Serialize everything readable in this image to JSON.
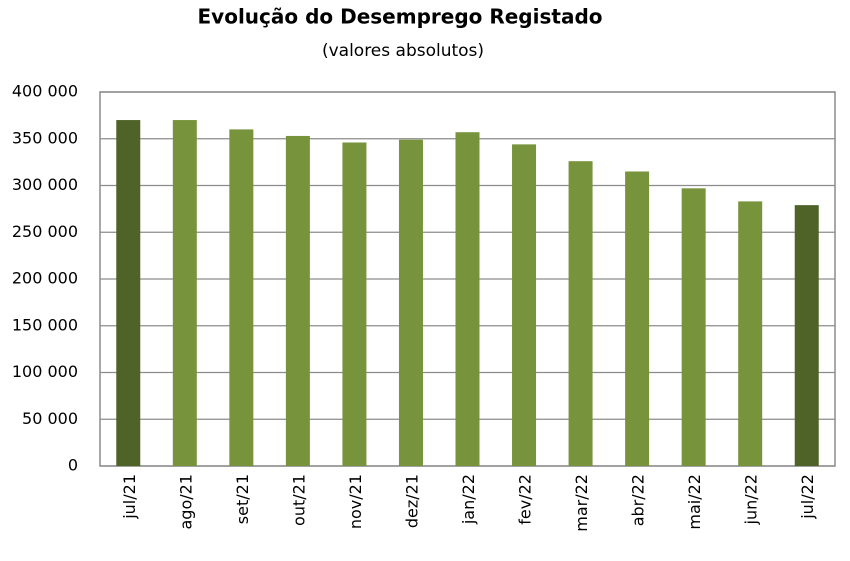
{
  "chart_data": {
    "type": "bar",
    "title": "Evolução do Desemprego Registado",
    "subtitle": "(valores absolutos)",
    "categories": [
      "jul/21",
      "ago/21",
      "set/21",
      "out/21",
      "nov/21",
      "dez/21",
      "jan/22",
      "fev/22",
      "mar/22",
      "abr/22",
      "mai/22",
      "jun/22",
      "jul/22"
    ],
    "values": [
      370000,
      370000,
      360000,
      353000,
      346000,
      349000,
      357000,
      344000,
      326000,
      315000,
      297000,
      283000,
      279000
    ],
    "colors": [
      "#4f6228",
      "#77933c",
      "#77933c",
      "#77933c",
      "#77933c",
      "#77933c",
      "#77933c",
      "#77933c",
      "#77933c",
      "#77933c",
      "#77933c",
      "#77933c",
      "#4f6228"
    ],
    "ylim": [
      0,
      400000
    ],
    "yticks": [
      0,
      {
        "value": 50000,
        "label": "50 000"
      },
      {
        "value": 100000,
        "label": "100 000"
      },
      {
        "value": 150000,
        "label": "150 000"
      },
      {
        "value": 200000,
        "label": "200 000"
      },
      {
        "value": 250000,
        "label": "250 000"
      },
      {
        "value": 300000,
        "label": "300 000"
      },
      {
        "value": 350000,
        "label": "350 000"
      },
      {
        "value": 400000,
        "label": "400 000"
      }
    ],
    "grid": true
  }
}
